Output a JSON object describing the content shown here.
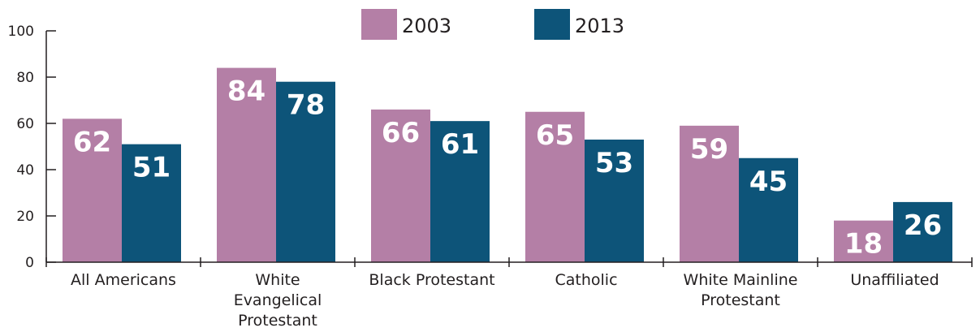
{
  "chart_data": {
    "type": "bar",
    "categories": [
      [
        "All Americans"
      ],
      [
        "White",
        "Evangelical",
        "Protestant"
      ],
      [
        "Black Protestant"
      ],
      [
        "Catholic"
      ],
      [
        "White Mainline",
        "Protestant"
      ],
      [
        "Unaffiliated"
      ]
    ],
    "series": [
      {
        "name": "2003",
        "color": "#b47fa6",
        "values": [
          62,
          84,
          66,
          65,
          59,
          18
        ]
      },
      {
        "name": "2013",
        "color": "#0d5479",
        "values": [
          51,
          78,
          61,
          53,
          45,
          26
        ]
      }
    ],
    "ylim": [
      0,
      100
    ],
    "yticks": [
      0,
      20,
      40,
      60,
      80,
      100
    ],
    "legend_position": "top-center",
    "grid": false
  }
}
